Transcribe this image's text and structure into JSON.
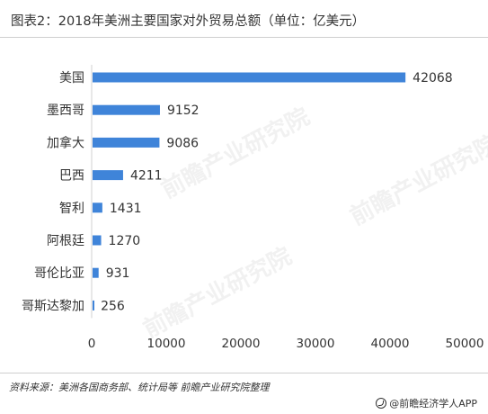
{
  "title": "图表2：2018年美洲主要国家对外贸易总额（单位：亿美元）",
  "source": "资料来源：美洲各国商务部、统计局等 前瞻产业研究院整理",
  "brand": "@前瞻经济学人APP",
  "watermark": "前瞻产业研究院",
  "colors": {
    "bar": "#3f84d9",
    "text": "#333333"
  },
  "chart_data": {
    "type": "bar",
    "orientation": "horizontal",
    "categories": [
      "美国",
      "墨西哥",
      "加拿大",
      "巴西",
      "智利",
      "阿根廷",
      "哥伦比亚",
      "哥斯达黎加"
    ],
    "values": [
      42068,
      9152,
      9086,
      4211,
      1431,
      1270,
      931,
      256
    ],
    "xlim": [
      0,
      50000
    ],
    "xticks": [
      0,
      10000,
      20000,
      30000,
      40000,
      50000
    ],
    "grid": false,
    "legend": "none"
  }
}
